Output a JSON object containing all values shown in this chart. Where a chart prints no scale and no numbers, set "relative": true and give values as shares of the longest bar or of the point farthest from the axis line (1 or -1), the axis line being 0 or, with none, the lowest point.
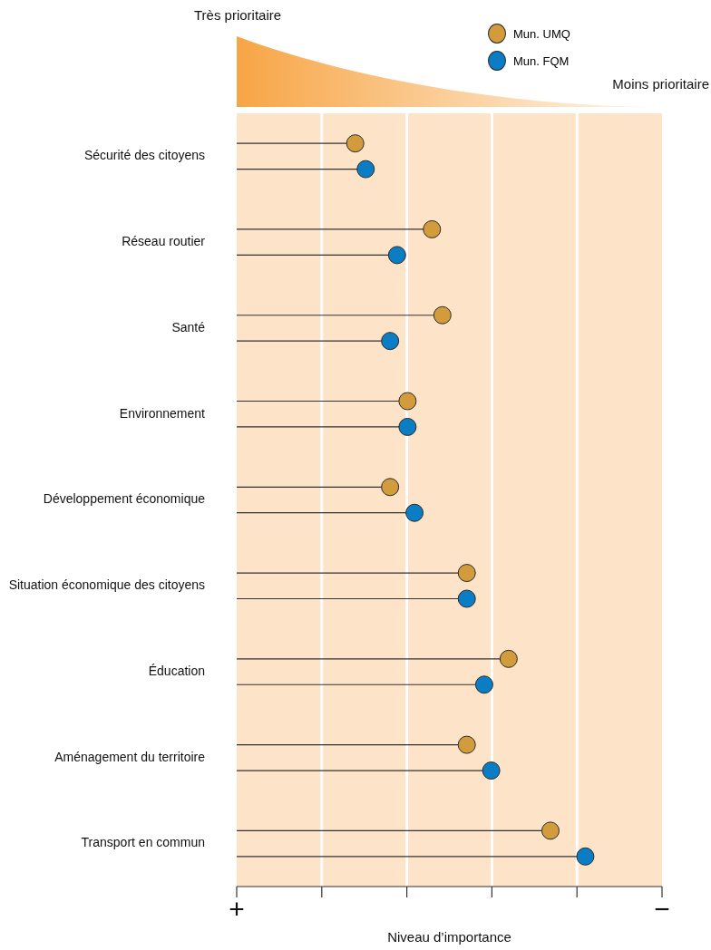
{
  "chart_data": {
    "type": "lollipop",
    "orientation": "horizontal",
    "xlabel": "Niveau d’importance",
    "annotations": [
      "Très prioritaire",
      "Moins prioritaire",
      "+",
      "−"
    ],
    "relative": true,
    "categories": [
      "Sécurité des citoyens",
      "Réseau routier",
      "Santé",
      "Environnement",
      "Développement économique",
      "Situation économique des citoyens",
      "Éducation",
      "Aménagement du territoire",
      "Transport en commun"
    ],
    "series": [
      {
        "name": "Mun. UMQ",
        "color": "#d29b3c",
        "values": [
          0.34,
          0.56,
          0.59,
          0.49,
          0.44,
          0.66,
          0.78,
          0.66,
          0.9
        ]
      },
      {
        "name": "Mun. FQM",
        "color": "#0a7dc4",
        "values": [
          0.37,
          0.46,
          0.44,
          0.49,
          0.51,
          0.66,
          0.71,
          0.73,
          1
        ]
      }
    ],
    "grid": "x",
    "legend": "top right",
    "marker": "circle"
  }
}
